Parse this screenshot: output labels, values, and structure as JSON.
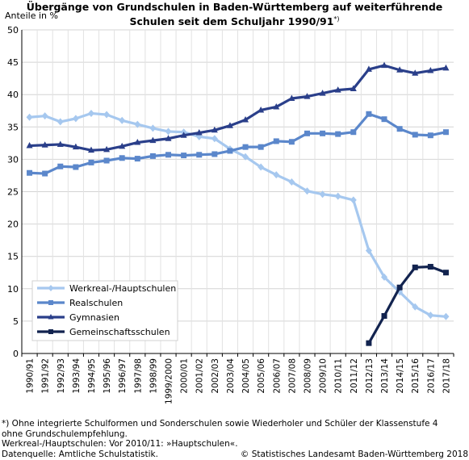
{
  "title_line1": "Übergänge von Grundschulen in Baden-Württemberg auf weiterführende",
  "title_line2": "Schulen seit dem Schuljahr 1990/91",
  "title_footnote_mark": "*)",
  "footer": {
    "note_line1": "*) Ohne integrierte Schulformen und Sonderschulen sowie Wiederholer und Schüler der Klassenstufe 4",
    "note_line2": "ohne Grundschulempfehlung.",
    "note_line3": "Werkreal-/Hauptschulen: Vor 2010/11: »Hauptschulen«.",
    "source": "Datenquelle: Amtliche Schulstatistik.",
    "copyright": "© Statistisches Landesamt Baden-Württemberg 2018"
  },
  "chart_data": {
    "type": "line",
    "ylabel": "Anteile in %",
    "ylim": [
      0,
      50
    ],
    "yticks": [
      "0",
      "5",
      "10",
      "15",
      "20",
      "25",
      "30",
      "35",
      "40",
      "45",
      "50"
    ],
    "grid": true,
    "legend_position": "bottom-left",
    "categories": [
      "1990/91",
      "1991/92",
      "1992/93",
      "1993/94",
      "1994/95",
      "1995/96",
      "1996/97",
      "1997/98",
      "1998/99",
      "1999/2000",
      "2000/01",
      "2001/02",
      "2002/03",
      "2003/04",
      "2004/05",
      "2005/06",
      "2006/07",
      "2007/08",
      "2008/09",
      "2009/10",
      "2010/11",
      "2011/12",
      "2012/13",
      "2013/14",
      "2014/15",
      "2015/16",
      "2016/17",
      "2017/18"
    ],
    "series": [
      {
        "name": "Werkreal-/Hauptschulen",
        "color": "#a6c8ef",
        "marker": "diamond",
        "values": [
          36.5,
          36.7,
          35.8,
          36.3,
          37.1,
          36.9,
          36.0,
          35.4,
          34.8,
          34.3,
          34.2,
          33.5,
          33.2,
          31.6,
          30.4,
          28.8,
          27.6,
          26.5,
          25.1,
          24.6,
          24.3,
          23.7,
          15.9,
          11.8,
          9.5,
          7.2,
          5.9,
          5.7
        ]
      },
      {
        "name": "Realschulen",
        "color": "#5b87cb",
        "marker": "square",
        "values": [
          27.9,
          27.8,
          28.9,
          28.8,
          29.5,
          29.8,
          30.2,
          30.1,
          30.5,
          30.7,
          30.6,
          30.7,
          30.8,
          31.3,
          31.9,
          31.9,
          32.8,
          32.7,
          34.0,
          34.0,
          33.9,
          34.2,
          37.0,
          36.2,
          34.7,
          33.8,
          33.7,
          34.2
        ]
      },
      {
        "name": "Gymnasien",
        "color": "#2a3f8a",
        "marker": "triangle",
        "values": [
          32.1,
          32.2,
          32.3,
          31.9,
          31.4,
          31.5,
          32.0,
          32.6,
          32.9,
          33.2,
          33.7,
          34.1,
          34.5,
          35.2,
          36.1,
          37.6,
          38.1,
          39.4,
          39.7,
          40.2,
          40.7,
          40.9,
          43.9,
          44.5,
          43.8,
          43.3,
          43.7,
          44.1
        ]
      },
      {
        "name": "Gemeinschaftsschulen",
        "color": "#12234f",
        "marker": "square",
        "values": [
          null,
          null,
          null,
          null,
          null,
          null,
          null,
          null,
          null,
          null,
          null,
          null,
          null,
          null,
          null,
          null,
          null,
          null,
          null,
          null,
          null,
          null,
          1.6,
          5.8,
          10.2,
          13.3,
          13.4,
          12.5
        ]
      }
    ]
  }
}
